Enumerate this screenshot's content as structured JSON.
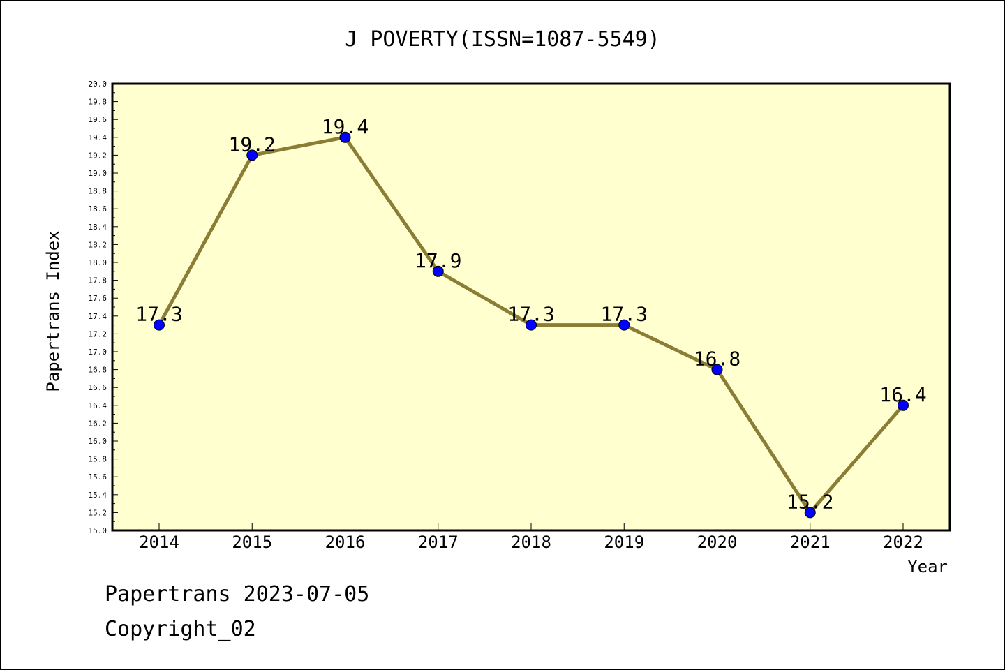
{
  "chart_data": {
    "type": "line",
    "title": "J POVERTY(ISSN=1087-5549)",
    "xlabel": "Year",
    "ylabel": "Papertrans Index",
    "categories": [
      "2014",
      "2015",
      "2016",
      "2017",
      "2018",
      "2019",
      "2020",
      "2021",
      "2022"
    ],
    "values": [
      17.3,
      19.2,
      19.4,
      17.9,
      17.3,
      17.3,
      16.8,
      15.2,
      16.4
    ],
    "data_labels": [
      "17.3",
      "19.2",
      "19.4",
      "17.9",
      "17.3",
      "17.3",
      "16.8",
      "15.2",
      "16.4"
    ],
    "ylim": [
      15.0,
      20.0
    ],
    "yticks": [
      "15.0",
      "15.2",
      "15.4",
      "15.6",
      "15.8",
      "16.0",
      "16.2",
      "16.4",
      "16.6",
      "16.8",
      "17.0",
      "17.2",
      "17.4",
      "17.6",
      "17.8",
      "18.0",
      "18.2",
      "18.4",
      "18.6",
      "18.8",
      "19.0",
      "19.2",
      "19.4",
      "19.6",
      "19.8",
      "20.0"
    ],
    "grid": false,
    "colors": {
      "plot_background": "#ffffd0",
      "line": "#8b7d35",
      "marker": "#0000ff"
    }
  },
  "footer": {
    "line1": "Papertrans 2023-07-05",
    "line2": "Copyright_02"
  }
}
